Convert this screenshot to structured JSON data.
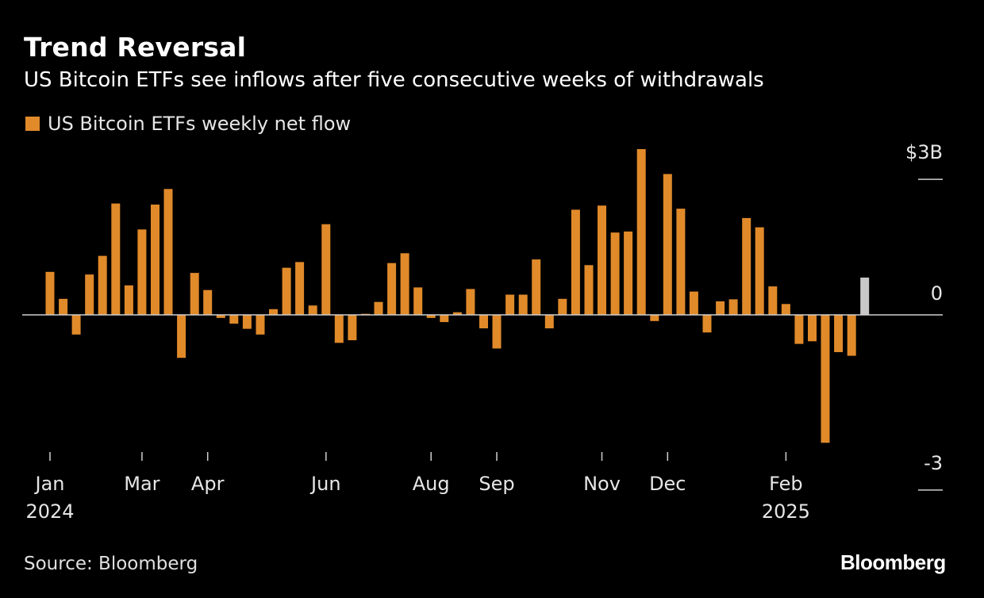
{
  "title": "Trend Reversal",
  "subtitle": "US Bitcoin ETFs see inflows after five consecutive weeks of withdrawals",
  "legend_label": "US Bitcoin ETFs weekly net flow",
  "source": "Source: Bloomberg",
  "brand": "Bloomberg",
  "colors": {
    "bar": "#e08a2a",
    "latest_bar": "#c8c8c8",
    "background": "#000000",
    "text": "#ffffff"
  },
  "chart_data": {
    "type": "bar",
    "series": [
      {
        "name": "US Bitcoin ETFs weekly net flow",
        "values": [
          0.83,
          0.31,
          -0.38,
          0.78,
          1.14,
          2.15,
          0.57,
          1.65,
          2.13,
          2.43,
          -0.83,
          0.81,
          0.48,
          -0.06,
          -0.17,
          -0.27,
          -0.38,
          0.11,
          0.91,
          1.02,
          0.18,
          1.75,
          -0.54,
          -0.49,
          0.02,
          0.25,
          1.0,
          1.19,
          0.53,
          -0.06,
          -0.14,
          0.05,
          0.5,
          -0.26,
          -0.65,
          0.39,
          0.39,
          1.07,
          -0.26,
          0.31,
          2.03,
          0.96,
          2.11,
          1.59,
          1.61,
          3.2,
          -0.12,
          2.72,
          2.05,
          0.45,
          -0.34,
          0.26,
          0.3,
          1.87,
          1.69,
          0.55,
          0.21,
          -0.56,
          -0.51,
          -2.47,
          -0.72,
          -0.79,
          0.72
        ]
      }
    ],
    "highlight_last": true,
    "ylim": [
      -3,
      3
    ],
    "y_ticks": [
      {
        "value": 3,
        "label": "$3B"
      },
      {
        "value": 0,
        "label": "0"
      },
      {
        "value": -3,
        "label": "-3"
      }
    ],
    "x_ticks": [
      {
        "bar_index": 0,
        "label": "Jan",
        "year": "2024"
      },
      {
        "bar_index": 7,
        "label": "Mar",
        "year": ""
      },
      {
        "bar_index": 12,
        "label": "Apr",
        "year": ""
      },
      {
        "bar_index": 21,
        "label": "Jun",
        "year": ""
      },
      {
        "bar_index": 29,
        "label": "Aug",
        "year": ""
      },
      {
        "bar_index": 34,
        "label": "Sep",
        "year": ""
      },
      {
        "bar_index": 42,
        "label": "Nov",
        "year": ""
      },
      {
        "bar_index": 47,
        "label": "Dec",
        "year": ""
      },
      {
        "bar_index": 56,
        "label": "Feb",
        "year": "2025"
      }
    ],
    "xlabel": "",
    "ylabel": ""
  }
}
